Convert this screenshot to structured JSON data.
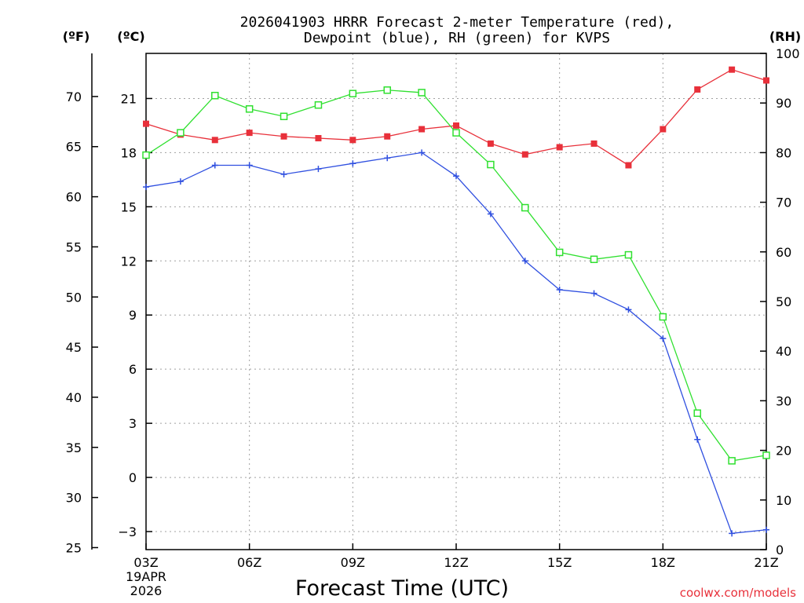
{
  "chart_data": {
    "type": "line",
    "title_line1": "2026041903 HRRR Forecast 2-meter Temperature (red),",
    "title_line2": "Dewpoint (blue), RH (green) for KVPS",
    "xlabel": "Forecast Time (UTC)",
    "credit": "coolwx.com/models",
    "date_line1": "19APR",
    "date_line2": "2026",
    "unit_f": "(ºF)",
    "unit_c": "(ºC)",
    "unit_rh": "(RH)",
    "x_ticks": [
      "03Z",
      "06Z",
      "09Z",
      "12Z",
      "15Z",
      "18Z",
      "21Z"
    ],
    "hours": [
      3,
      4,
      5,
      6,
      7,
      8,
      9,
      10,
      11,
      12,
      13,
      14,
      15,
      16,
      17,
      18,
      19,
      20,
      21
    ],
    "xlim": [
      3,
      21
    ],
    "celsius_ticks": [
      -3,
      0,
      3,
      6,
      9,
      12,
      15,
      18,
      21
    ],
    "fahrenheit_ticks": [
      25,
      30,
      35,
      40,
      45,
      50,
      55,
      60,
      65,
      70
    ],
    "rh_ticks": [
      0,
      10,
      20,
      30,
      40,
      50,
      60,
      70,
      80,
      90,
      100
    ],
    "ylim_c": [
      -4,
      23.5
    ],
    "ylim_rh": [
      0,
      100
    ],
    "series": [
      {
        "name": "Temperature",
        "axis": "celsius",
        "color": "#e8303a",
        "marker": "filled-square",
        "values": [
          19.6,
          19.0,
          18.7,
          19.1,
          18.9,
          18.8,
          18.7,
          18.9,
          19.3,
          19.5,
          18.5,
          17.9,
          18.3,
          18.5,
          17.3,
          19.3,
          21.5,
          22.6,
          22.0
        ]
      },
      {
        "name": "Dewpoint",
        "axis": "celsius",
        "color": "#3050e0",
        "marker": "plus",
        "values": [
          16.1,
          16.4,
          17.3,
          17.3,
          16.8,
          17.1,
          17.4,
          17.7,
          18.0,
          16.7,
          14.6,
          12.0,
          10.4,
          10.2,
          9.3,
          7.7,
          2.1,
          -3.1,
          -2.9
        ]
      },
      {
        "name": "RH",
        "axis": "rh",
        "color": "#30e030",
        "marker": "open-square",
        "values": [
          79.5,
          84,
          91.5,
          88.8,
          87.3,
          89.6,
          91.9,
          92.6,
          92.1,
          84,
          77.6,
          68.9,
          59.9,
          58.5,
          59.4,
          46.9,
          27.5,
          17.9,
          19.0
        ]
      }
    ]
  }
}
